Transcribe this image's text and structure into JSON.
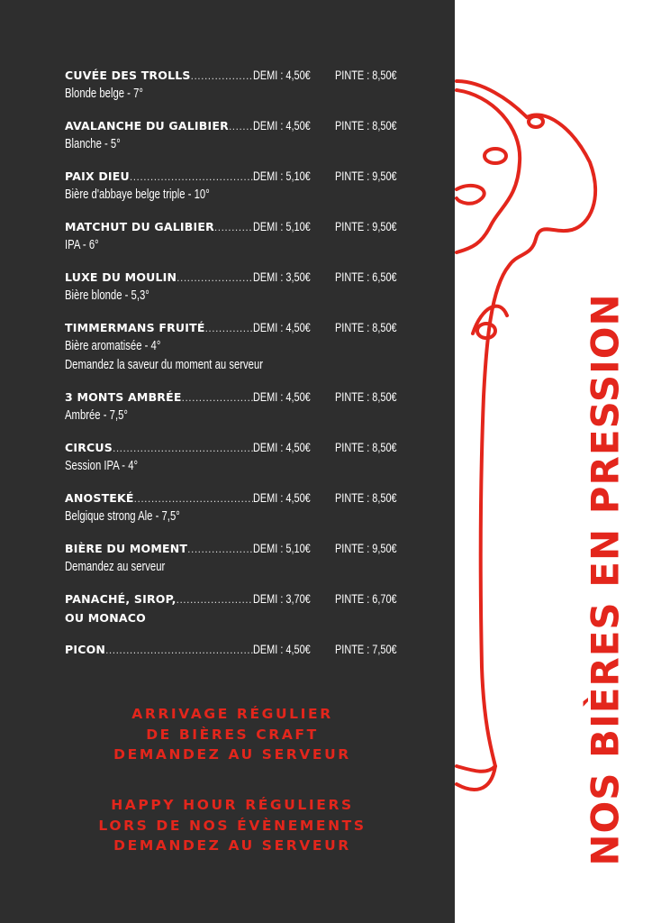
{
  "menu": {
    "items": [
      {
        "name": "CUVÉE DES TROLLS",
        "desc": [
          "Blonde belge - 7°"
        ],
        "demi": "DEMI : 4,50€",
        "pinte": "PINTE : 8,50€"
      },
      {
        "name": "AVALANCHE DU GALIBIER",
        "desc": [
          "Blanche - 5°"
        ],
        "demi": "DEMI : 4,50€",
        "pinte": "PINTE : 8,50€"
      },
      {
        "name": "PAIX DIEU",
        "desc": [
          "Bière d'abbaye belge triple - 10°"
        ],
        "demi": "DEMI : 5,10€",
        "pinte": "PINTE : 9,50€"
      },
      {
        "name": "MATCHUT DU GALIBIER",
        "desc": [
          "IPA - 6°"
        ],
        "demi": "DEMI : 5,10€",
        "pinte": "PINTE : 9,50€"
      },
      {
        "name": "LUXE DU MOULIN",
        "desc": [
          "Bière blonde - 5,3°"
        ],
        "demi": "DEMI : 3,50€",
        "pinte": "PINTE : 6,50€"
      },
      {
        "name": "TIMMERMANS FRUITÉ",
        "desc": [
          "Bière aromatisée - 4°",
          "Demandez la saveur du moment au serveur"
        ],
        "demi": "DEMI : 4,50€",
        "pinte": "PINTE : 8,50€"
      },
      {
        "name": "3 MONTS AMBRÉE",
        "desc": [
          "Ambrée - 7,5°"
        ],
        "demi": "DEMI : 4,50€",
        "pinte": "PINTE : 8,50€"
      },
      {
        "name": "CIRCUS",
        "desc": [
          "Session IPA - 4°"
        ],
        "demi": "DEMI : 4,50€",
        "pinte": "PINTE : 8,50€"
      },
      {
        "name": "ANOSTEKÉ",
        "desc": [
          "Belgique strong Ale - 7,5°"
        ],
        "demi": "DEMI : 4,50€",
        "pinte": "PINTE : 8,50€"
      },
      {
        "name": "BIÈRE DU MOMENT",
        "desc": [
          "Demandez au serveur"
        ],
        "demi": "DEMI : 5,10€",
        "pinte": "PINTE : 9,50€"
      },
      {
        "name": "PANACHÉ, SIROP,",
        "name2": "OU MONACO",
        "desc": [],
        "demi": "DEMI : 3,70€",
        "pinte": "PINTE : 6,70€"
      },
      {
        "name": "PICON",
        "desc": [],
        "demi": "DEMI : 4,50€",
        "pinte": "PINTE : 7,50€"
      }
    ]
  },
  "footer": {
    "craft": [
      "ARRIVAGE RÉGULIER",
      "DE BIÈRES CRAFT",
      "DEMANDEZ AU SERVEUR"
    ],
    "happy_hour": [
      "HAPPY HOUR RÉGULIERS",
      "LORS DE NOS ÉVÈNEMENTS",
      "DEMANDEZ AU SERVEUR"
    ]
  },
  "side_title": "NOS BIÈRES EN PRESSION",
  "colors": {
    "panel": "#2e2e2e",
    "accent": "#e3261c",
    "text": "#ffffff"
  },
  "illustration": "beer-tap-handle"
}
